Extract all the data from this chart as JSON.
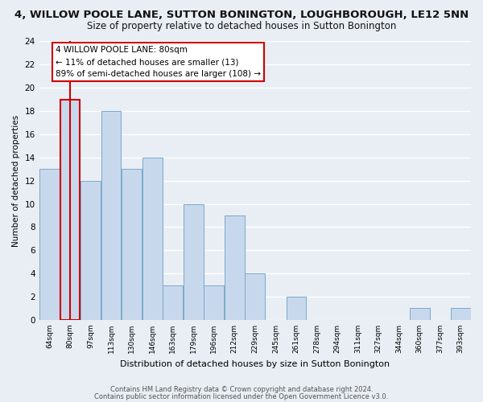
{
  "title": "4, WILLOW POOLE LANE, SUTTON BONINGTON, LOUGHBOROUGH, LE12 5NN",
  "subtitle": "Size of property relative to detached houses in Sutton Bonington",
  "xlabel": "Distribution of detached houses by size in Sutton Bonington",
  "ylabel": "Number of detached properties",
  "bin_labels": [
    "64sqm",
    "80sqm",
    "97sqm",
    "113sqm",
    "130sqm",
    "146sqm",
    "163sqm",
    "179sqm",
    "196sqm",
    "212sqm",
    "229sqm",
    "245sqm",
    "261sqm",
    "278sqm",
    "294sqm",
    "311sqm",
    "327sqm",
    "344sqm",
    "360sqm",
    "377sqm",
    "393sqm"
  ],
  "bar_heights": [
    13,
    19,
    12,
    18,
    13,
    14,
    3,
    10,
    3,
    9,
    4,
    0,
    2,
    0,
    0,
    0,
    0,
    0,
    1,
    0,
    1
  ],
  "bar_color": "#c8d8ec",
  "bar_edge_color": "#7aaac8",
  "highlight_bar_index": 1,
  "highlight_edge_color": "#cc0000",
  "ylim": [
    0,
    24
  ],
  "yticks": [
    0,
    2,
    4,
    6,
    8,
    10,
    12,
    14,
    16,
    18,
    20,
    22,
    24
  ],
  "annotation_title": "4 WILLOW POOLE LANE: 80sqm",
  "annotation_line1": "← 11% of detached houses are smaller (13)",
  "annotation_line2": "89% of semi-detached houses are larger (108) →",
  "annotation_box_color": "#ffffff",
  "annotation_box_edge_color": "#cc0000",
  "footer_line1": "Contains HM Land Registry data © Crown copyright and database right 2024.",
  "footer_line2": "Contains public sector information licensed under the Open Government Licence v3.0.",
  "background_color": "#e8eef4",
  "grid_color": "#ffffff"
}
